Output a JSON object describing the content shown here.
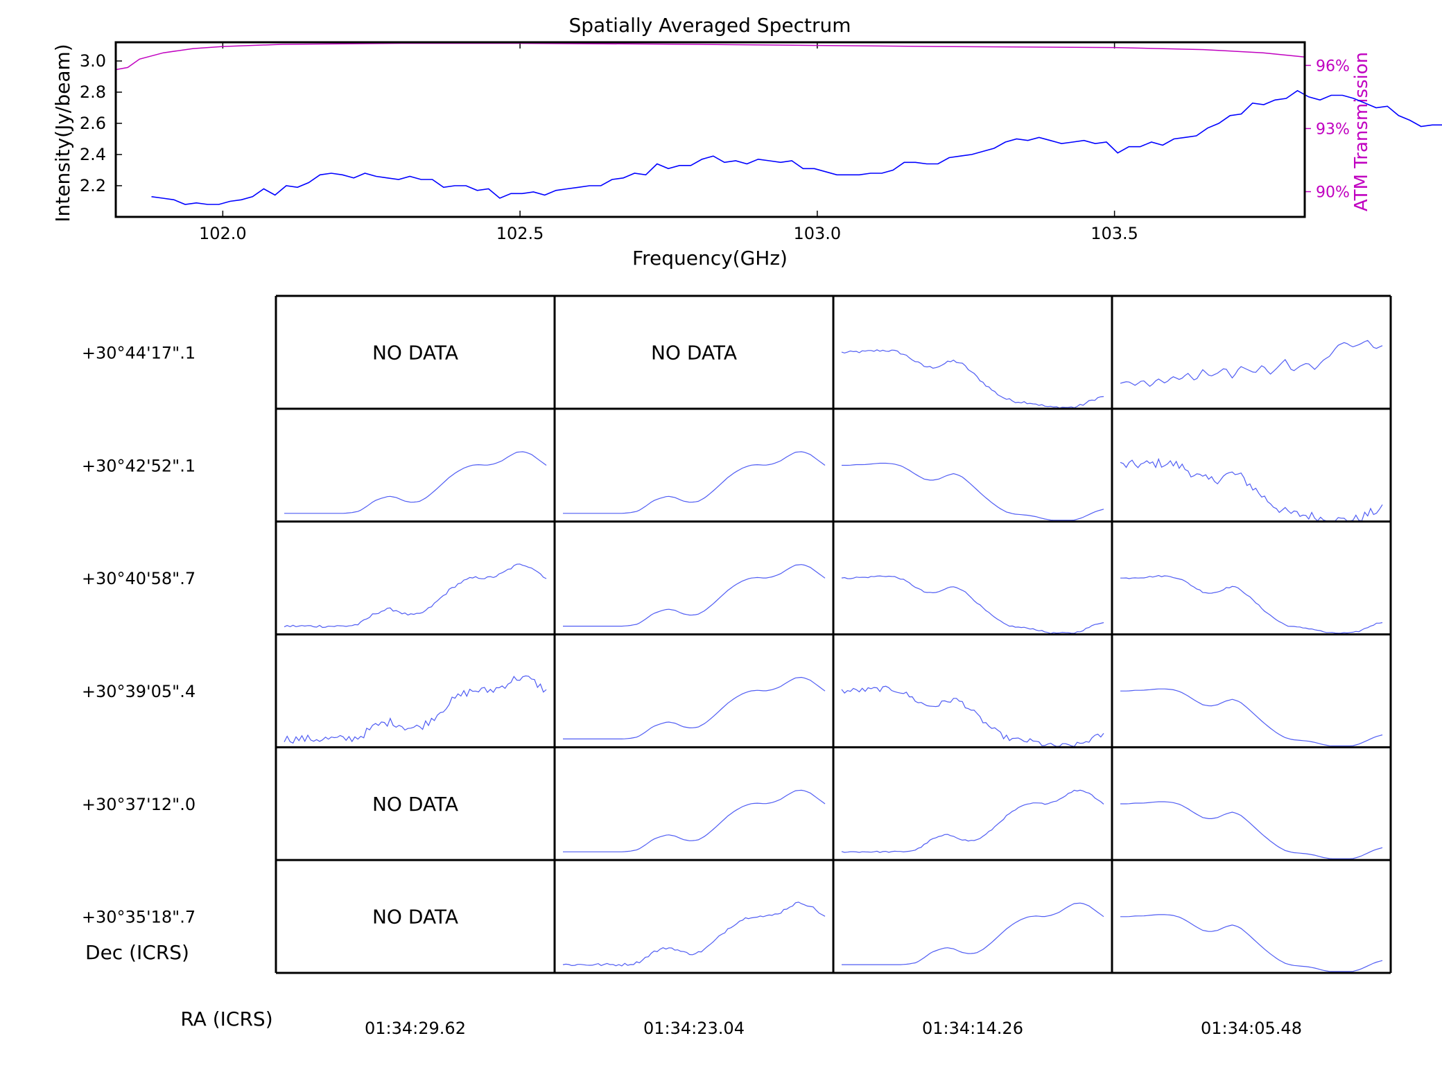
{
  "chart_data": [
    {
      "type": "line",
      "title": "Spatially Averaged Spectrum",
      "xlabel": "Frequency(GHz)",
      "ylabel": "Intensity(Jy/beam)",
      "y2label": "ATM Transmission",
      "xlim": [
        101.82,
        103.82
      ],
      "ylim": [
        2.0,
        3.12
      ],
      "y2lim": [
        88.8,
        97.1
      ],
      "x_ticks": [
        "102.0",
        "102.5",
        "103.0",
        "103.5"
      ],
      "y_ticks": [
        "2.2",
        "2.4",
        "2.6",
        "2.8",
        "3.0"
      ],
      "y2_ticks": [
        "90%",
        "93%",
        "96%"
      ],
      "grid": false,
      "colors": {
        "intensity": "#0000ff",
        "transmission": "#c000c0"
      },
      "series": [
        {
          "x_start": 101.88,
          "x_step": 0.0189,
          "values": [
            2.13,
            2.12,
            2.11,
            2.08,
            2.09,
            2.08,
            2.08,
            2.1,
            2.11,
            2.13,
            2.18,
            2.14,
            2.2,
            2.19,
            2.22,
            2.27,
            2.28,
            2.27,
            2.25,
            2.28,
            2.26,
            2.25,
            2.24,
            2.26,
            2.24,
            2.24,
            2.19,
            2.2,
            2.2,
            2.17,
            2.18,
            2.12,
            2.15,
            2.15,
            2.16,
            2.14,
            2.17,
            2.18,
            2.19,
            2.2,
            2.2,
            2.24,
            2.25,
            2.28,
            2.27,
            2.34,
            2.31,
            2.33,
            2.33,
            2.37,
            2.39,
            2.35,
            2.36,
            2.34,
            2.37,
            2.36,
            2.35,
            2.36,
            2.31,
            2.31,
            2.29,
            2.27,
            2.27,
            2.27,
            2.28,
            2.28,
            2.3,
            2.35,
            2.35,
            2.34,
            2.34,
            2.38,
            2.39,
            2.4,
            2.42,
            2.44,
            2.48,
            2.5,
            2.49,
            2.51,
            2.49,
            2.47,
            2.48,
            2.49,
            2.47,
            2.48,
            2.41,
            2.45,
            2.45,
            2.48,
            2.46,
            2.5,
            2.51,
            2.52,
            2.57,
            2.6,
            2.65,
            2.66,
            2.73,
            2.72,
            2.75,
            2.76,
            2.81,
            2.77,
            2.75,
            2.78,
            2.78,
            2.76,
            2.73,
            2.7,
            2.71,
            2.65,
            2.62,
            2.58,
            2.59,
            2.59,
            2.56,
            2.55,
            2.5
          ]
        },
        {
          "x": [
            101.82,
            101.84,
            101.86,
            101.9,
            101.95,
            102.0,
            102.1,
            102.3,
            102.5,
            102.8,
            103.0,
            103.2,
            103.5,
            103.65,
            103.75,
            103.82
          ],
          "values": [
            95.8,
            95.9,
            96.3,
            96.6,
            96.8,
            96.9,
            97.0,
            97.05,
            97.05,
            97.0,
            96.95,
            96.9,
            96.85,
            96.75,
            96.6,
            96.4
          ]
        }
      ]
    },
    {
      "type": "line",
      "xlabel": "RA (ICRS)",
      "ylabel": "Dec (ICRS)",
      "ra_labels": [
        "01:34:29.62",
        "01:34:23.04",
        "01:34:14.26",
        "01:34:05.48"
      ],
      "dec_labels": [
        "+30°44'17\".1",
        "+30°42'52\".1",
        "+30°40'58\".7",
        "+30°39'05\".4",
        "+30°37'12\".0",
        "+30°35'18\".7"
      ],
      "no_data_label": "NO DATA",
      "line_color": "#4f5cf3",
      "profiles": {
        "A": [
          0.1,
          0.1,
          0.1,
          0.1,
          0.1,
          0.1,
          0.1,
          0.1,
          0.1,
          0.11,
          0.13,
          0.2,
          0.28,
          0.32,
          0.35,
          0.33,
          0.28,
          0.26,
          0.27,
          0.33,
          0.42,
          0.52,
          0.62,
          0.7,
          0.76,
          0.8,
          0.81,
          0.8,
          0.82,
          0.86,
          0.93,
          0.99,
          1.0,
          0.96,
          0.88,
          0.8
        ],
        "B": [
          0.8,
          0.8,
          0.81,
          0.81,
          0.82,
          0.83,
          0.83,
          0.82,
          0.79,
          0.73,
          0.66,
          0.6,
          0.58,
          0.6,
          0.65,
          0.68,
          0.64,
          0.55,
          0.45,
          0.35,
          0.26,
          0.18,
          0.12,
          0.09,
          0.08,
          0.07,
          0.05,
          0.02,
          0.0,
          0.0,
          0.0,
          0.0,
          0.03,
          0.08,
          0.13,
          0.16
        ],
        "C": [
          0.35,
          0.38,
          0.32,
          0.4,
          0.3,
          0.42,
          0.35,
          0.45,
          0.4,
          0.5,
          0.38,
          0.55,
          0.45,
          0.5,
          0.58,
          0.42,
          0.6,
          0.55,
          0.5,
          0.62,
          0.48,
          0.58,
          0.7,
          0.52,
          0.6,
          0.65,
          0.55,
          0.68,
          0.75,
          0.9,
          0.95,
          0.88,
          0.92,
          0.98,
          0.85,
          0.9
        ]
      },
      "cells": [
        [
          "none",
          "none",
          {
            "p": "B",
            "n": 0.02
          },
          {
            "p": "C",
            "n": 0
          }
        ],
        [
          {
            "p": "A",
            "n": 0
          },
          {
            "p": "A",
            "n": 0
          },
          {
            "p": "B",
            "n": 0
          },
          {
            "p": "B",
            "n": 0.07
          }
        ],
        [
          {
            "p": "A",
            "n": 0.02
          },
          {
            "p": "A",
            "n": 0
          },
          {
            "p": "B",
            "n": 0.01
          },
          {
            "p": "B",
            "n": 0.01
          }
        ],
        [
          {
            "p": "A",
            "n": 0.06
          },
          {
            "p": "A",
            "n": 0
          },
          {
            "p": "B",
            "n": 0.04
          },
          {
            "p": "B",
            "n": 0
          }
        ],
        [
          "none",
          {
            "p": "A",
            "n": 0
          },
          {
            "p": "A",
            "n": 0.01
          },
          {
            "p": "B",
            "n": 0
          }
        ],
        [
          "none",
          {
            "p": "A",
            "n": 0.02
          },
          {
            "p": "A",
            "n": 0
          },
          {
            "p": "B",
            "n": 0
          }
        ]
      ]
    }
  ]
}
